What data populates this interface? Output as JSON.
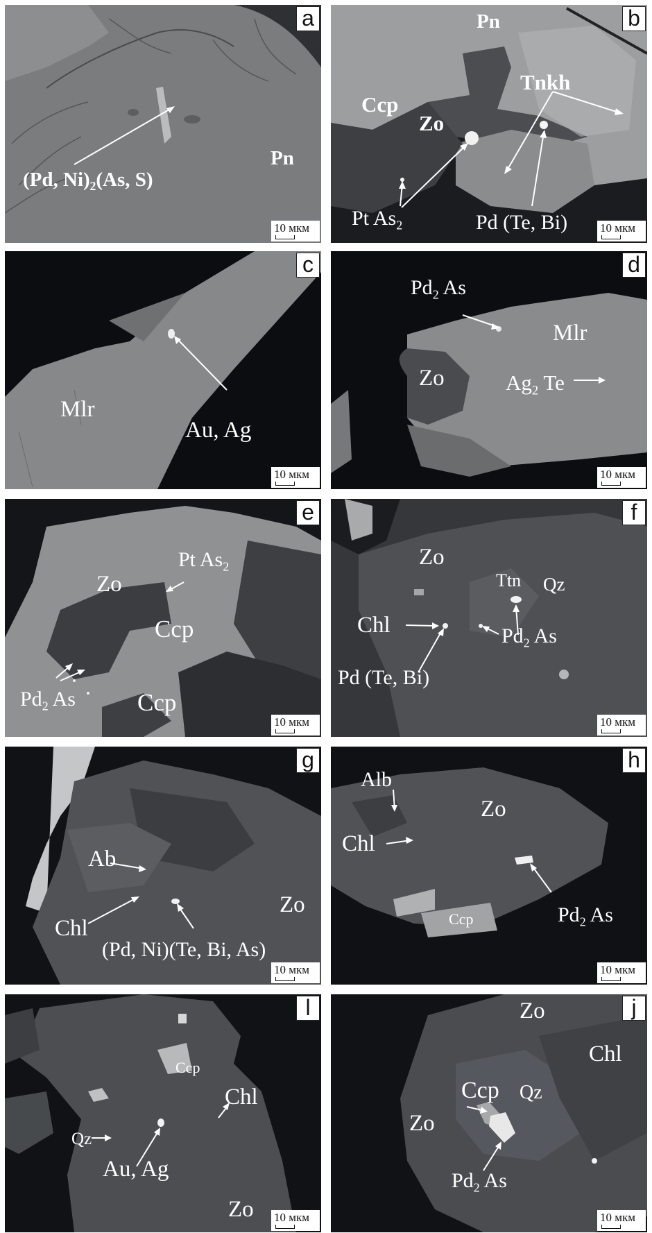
{
  "scale_label": "10 мкм",
  "panels": {
    "a": {
      "letter": "a",
      "labels": {
        "pdni": "(Pd, Ni)",
        "pdni_sub": "2",
        "pdni_tail": "(As, S)",
        "pn": "Pn"
      }
    },
    "b": {
      "letter": "b",
      "labels": {
        "pn": "Pn",
        "ccp": "Ccp",
        "tnkh": "Tnkh",
        "zo": "Zo",
        "ptas": "Pt As",
        "ptas_sub": "2",
        "pdtebi": "Pd (Te, Bi)"
      }
    },
    "c": {
      "letter": "c",
      "labels": {
        "mlr": "Mlr",
        "auag": "Au, Ag"
      }
    },
    "d": {
      "letter": "d",
      "labels": {
        "pd2as": "Pd",
        "pd2as_sub": "2",
        "pd2as_tail": " As",
        "mlr": "Mlr",
        "zo": "Zo",
        "ag2te": "Ag",
        "ag2te_sub": "2",
        "ag2te_tail": " Te"
      }
    },
    "e": {
      "letter": "e",
      "labels": {
        "ptas": "Pt As",
        "ptas_sub": "2",
        "zo": "Zo",
        "ccp1": "Ccp",
        "pd2as": "Pd",
        "pd2as_sub": "2",
        "pd2as_tail": " As",
        "ccp2": "Ccp"
      }
    },
    "f": {
      "letter": "f",
      "labels": {
        "zo": "Zo",
        "ttn": "Ttn",
        "qz": "Qz",
        "chl": "Chl",
        "pd2as": "Pd",
        "pd2as_sub": "2",
        "pd2as_tail": " As",
        "pdtebi": "Pd (Te, Bi)"
      }
    },
    "g": {
      "letter": "g",
      "labels": {
        "ab": "Ab",
        "chl": "Chl",
        "zo": "Zo",
        "pdni": "(Pd, Ni)(Te, Bi, As)"
      }
    },
    "h": {
      "letter": "h",
      "labels": {
        "alb": "Alb",
        "zo": "Zo",
        "chl": "Chl",
        "pd2as": "Pd",
        "pd2as_sub": "2",
        "pd2as_tail": " As",
        "ccp": "Ccp"
      }
    },
    "i": {
      "letter": "l",
      "labels": {
        "ccp": "Ccp",
        "chl": "Chl",
        "qz": "Qz",
        "auag": "Au, Ag",
        "zo": "Zo"
      }
    },
    "j": {
      "letter": "j",
      "labels": {
        "zo1": "Zo",
        "chl": "Chl",
        "ccp": "Ccp",
        "qz": "Qz",
        "zo2": "Zo",
        "pd2as": "Pd",
        "pd2as_sub": "2",
        "pd2as_tail": " As"
      }
    }
  }
}
